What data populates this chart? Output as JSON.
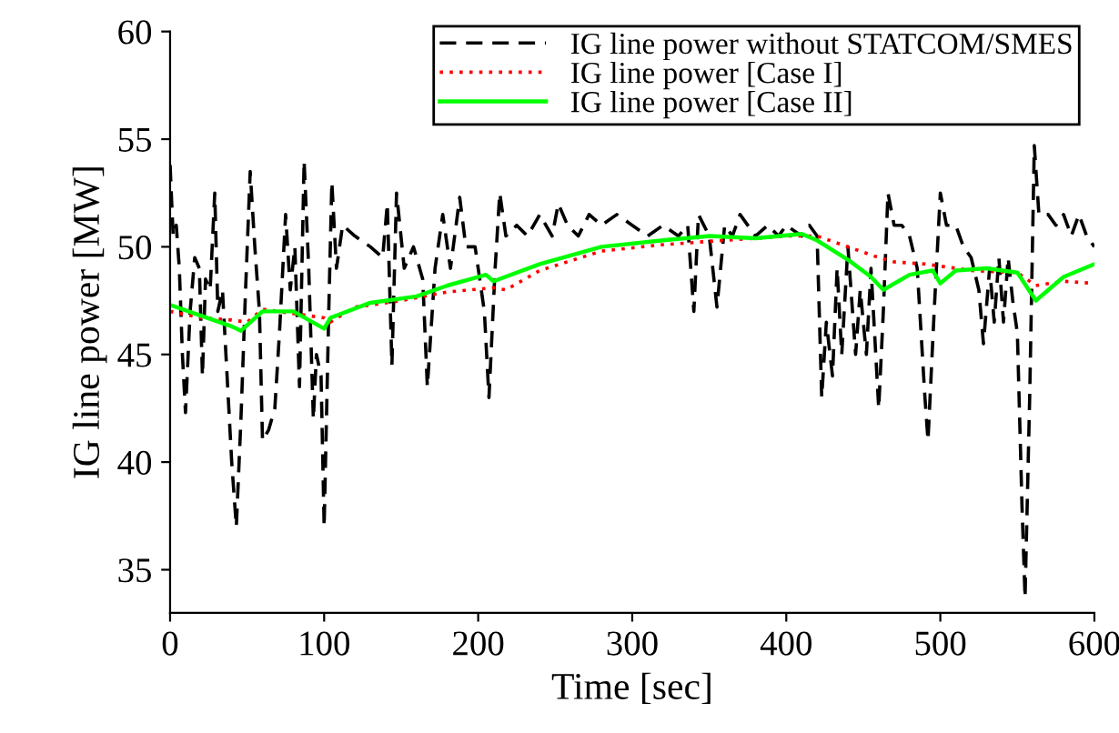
{
  "chart_data": {
    "type": "line",
    "xlabel": "Time [sec]",
    "ylabel": "IG line power [MW]",
    "xlim": [
      0,
      600
    ],
    "ylim": [
      33,
      60
    ],
    "xticks": [
      0,
      100,
      200,
      300,
      400,
      500,
      600
    ],
    "yticks": [
      35,
      40,
      45,
      50,
      55,
      60
    ],
    "grid": false,
    "legend": "top right",
    "marker": "none",
    "series": [
      {
        "name": "IG line power without STATCOM/SMES",
        "color": "#000000",
        "line_style": "dashed",
        "x": [
          0,
          2,
          4,
          6,
          8,
          10,
          13,
          16,
          19,
          21,
          23,
          26,
          29,
          31,
          34,
          37,
          40,
          43,
          46,
          49,
          52,
          55,
          58,
          60,
          64,
          68,
          71,
          75,
          78,
          81,
          84,
          87,
          90,
          93,
          95,
          98,
          100,
          103,
          105,
          108,
          112,
          120,
          130,
          138,
          141,
          144,
          147,
          152,
          158,
          164,
          167,
          172,
          177,
          182,
          188,
          192,
          198,
          204,
          207,
          211,
          214,
          218,
          225,
          232,
          240,
          248,
          252,
          258,
          265,
          272,
          280,
          290,
          300,
          310,
          320,
          330,
          336,
          340,
          343,
          350,
          355,
          360,
          365,
          370,
          380,
          388,
          395,
          400,
          410,
          415,
          420,
          423,
          426,
          430,
          433,
          436,
          440,
          445,
          448,
          452,
          455,
          460,
          463,
          466,
          470,
          475,
          480,
          485,
          490,
          492,
          496,
          500,
          504,
          510,
          515,
          520,
          525,
          528,
          532,
          535,
          538,
          541,
          544,
          547,
          550,
          553,
          555,
          558,
          561,
          564,
          570,
          575,
          580,
          585,
          590,
          595,
          600
        ],
        "values": [
          53.8,
          50.5,
          51,
          49,
          45,
          42.3,
          47,
          49.5,
          49,
          44,
          48.5,
          48,
          52.5,
          47,
          48,
          44,
          40,
          37,
          42,
          48,
          53.5,
          50,
          47,
          41,
          41.5,
          42.5,
          46,
          51.5,
          48,
          50,
          43.5,
          54,
          49,
          42,
          45,
          44,
          37,
          47,
          53,
          49,
          51,
          50.5,
          50,
          49.5,
          52,
          44.5,
          52.5,
          49,
          50,
          48.5,
          43.5,
          49,
          51.5,
          49,
          52.3,
          50,
          50,
          47,
          43,
          49,
          52.5,
          50.5,
          51,
          50.5,
          51.5,
          50.5,
          52,
          51,
          50.5,
          51.5,
          51,
          51.5,
          51,
          50.5,
          51,
          50.5,
          51,
          47,
          51.5,
          50.5,
          47.2,
          51,
          50.5,
          51.5,
          50.5,
          51,
          50.5,
          51,
          50.5,
          51,
          50.5,
          43,
          46.5,
          44,
          49,
          45,
          50,
          45,
          48,
          45,
          49,
          42.5,
          47,
          52.5,
          51,
          51,
          50.5,
          49,
          43,
          41,
          47,
          52.5,
          51,
          51,
          50,
          49.5,
          48,
          45.5,
          49,
          46.5,
          49.5,
          46.5,
          49.5,
          47.5,
          46,
          38,
          33.7,
          43,
          54.7,
          51.5,
          51.5,
          51,
          51.5,
          50.5,
          51.5,
          50.5,
          50
        ]
      },
      {
        "name": "IG line power [Case I]",
        "color": "#ff0000",
        "line_style": "dotted",
        "x": [
          0,
          20,
          40,
          50,
          60,
          80,
          100,
          104,
          120,
          150,
          180,
          210,
          218,
          240,
          280,
          320,
          360,
          400,
          420,
          440,
          460,
          470,
          490,
          500,
          520,
          550,
          562,
          580,
          600
        ],
        "values": [
          47,
          46.7,
          46.6,
          46.5,
          47.1,
          46.9,
          46.7,
          46.5,
          47.2,
          47.5,
          47.9,
          48.1,
          48,
          48.9,
          49.8,
          50.1,
          50.3,
          50.5,
          50.5,
          50,
          49.5,
          49.3,
          49.2,
          49.1,
          48.9,
          48.8,
          48.2,
          48.4,
          48.3
        ]
      },
      {
        "name": "IG line power [Case II]",
        "color": "#00ff00",
        "line_style": "solid",
        "x": [
          0,
          20,
          40,
          46,
          60,
          80,
          100,
          104,
          130,
          160,
          180,
          205,
          210,
          240,
          280,
          320,
          350,
          380,
          410,
          420,
          440,
          455,
          463,
          480,
          495,
          500,
          510,
          530,
          550,
          562,
          580,
          600
        ],
        "values": [
          47.3,
          46.8,
          46.3,
          46.1,
          47,
          47,
          46.2,
          46.7,
          47.4,
          47.7,
          48.2,
          48.7,
          48.4,
          49.2,
          50,
          50.3,
          50.5,
          50.4,
          50.6,
          50.3,
          49.4,
          48.6,
          48,
          48.7,
          48.9,
          48.3,
          48.9,
          49,
          48.8,
          47.5,
          48.6,
          49.2
        ]
      }
    ]
  }
}
